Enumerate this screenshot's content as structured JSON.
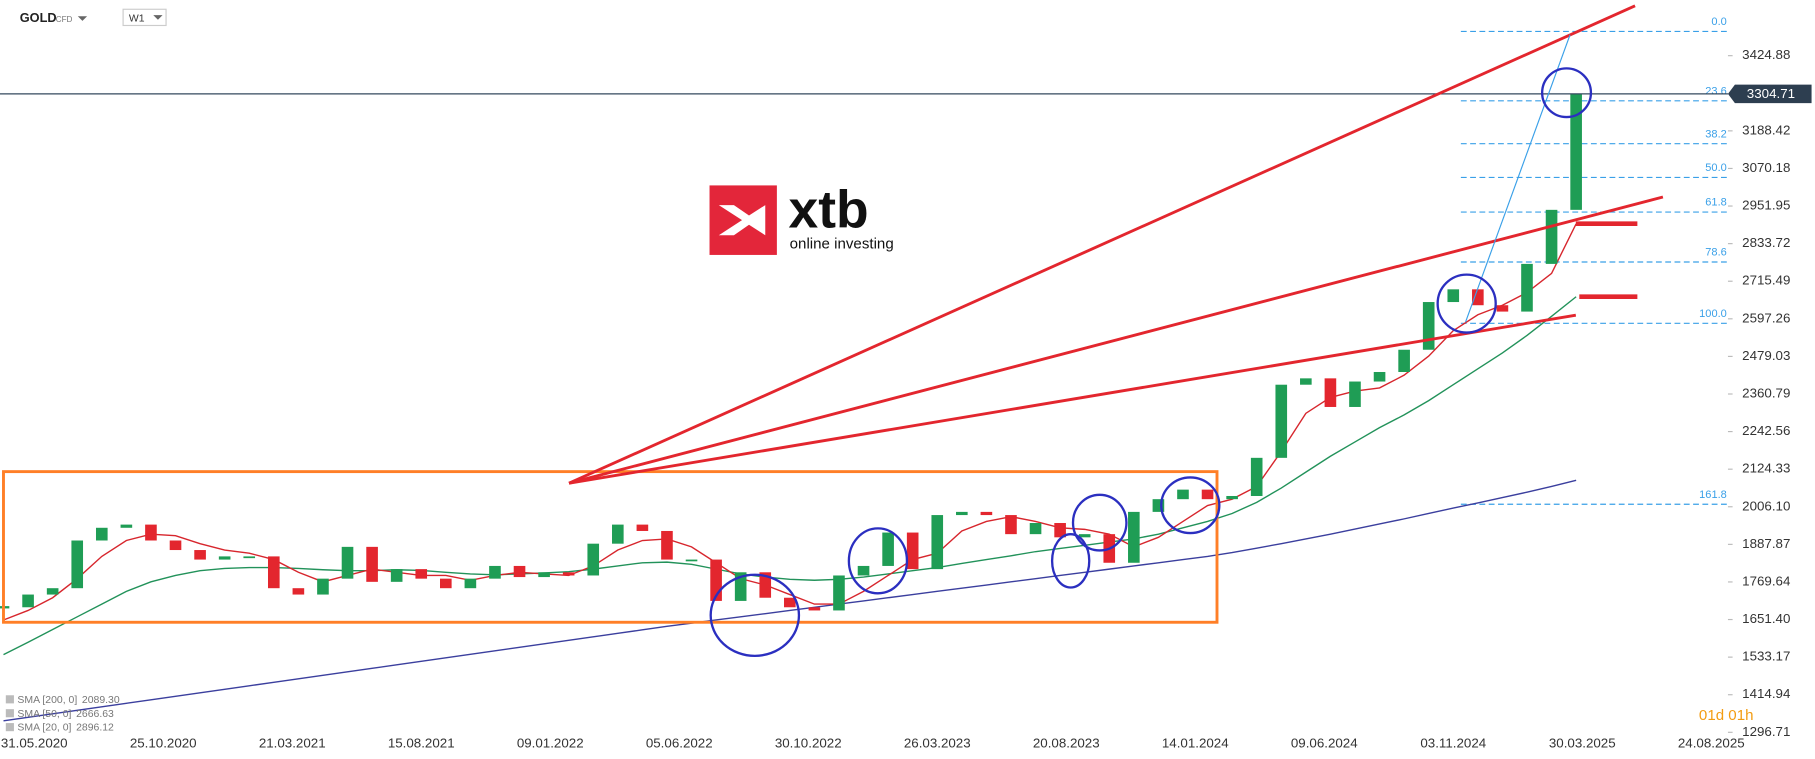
{
  "chart_data": {
    "type": "candlestick",
    "symbol": "GOLD",
    "instrument_type": "CFD",
    "timeframe": "W1",
    "brand": "xtb",
    "brand_tagline": "online investing",
    "countdown": "01d 01h",
    "x": [
      "26.04.2020",
      "24.05.2020",
      "21.06.2020",
      "19.07.2020",
      "16.08.2020",
      "13.09.2020",
      "11.10.2020",
      "08.11.2020",
      "06.12.2020",
      "03.01.2021",
      "31.01.2021",
      "28.02.2021",
      "28.03.2021",
      "25.04.2021",
      "23.05.2021",
      "20.06.2021",
      "18.07.2021",
      "15.08.2021",
      "12.09.2021",
      "10.10.2021",
      "07.11.2021",
      "05.12.2021",
      "02.01.2022",
      "30.01.2022",
      "27.02.2022",
      "27.03.2022",
      "24.04.2022",
      "22.05.2022",
      "19.06.2022",
      "17.07.2022",
      "14.08.2022",
      "11.09.2022",
      "09.10.2022",
      "06.11.2022",
      "04.12.2022",
      "01.01.2023",
      "29.01.2023",
      "26.02.2023",
      "26.03.2023",
      "23.04.2023",
      "21.05.2023",
      "18.06.2023",
      "16.07.2023",
      "13.08.2023",
      "10.09.2023",
      "08.10.2023",
      "05.11.2023",
      "03.12.2023",
      "31.12.2023",
      "28.01.2024",
      "25.02.2024",
      "24.03.2024",
      "21.04.2024",
      "19.05.2024",
      "16.06.2024",
      "14.07.2024",
      "11.08.2024",
      "08.09.2024",
      "06.10.2024",
      "03.11.2024",
      "01.12.2024",
      "29.12.2024",
      "26.01.2025",
      "23.02.2025",
      "23.03.2025"
    ],
    "series": [
      {
        "name": "GOLD",
        "up_color": "#1f9d55",
        "down_color": "#e3262e",
        "values": [
          1690,
          1730,
          1750,
          1900,
          1940,
          1950,
          1900,
          1870,
          1840,
          1850,
          1850,
          1750,
          1730,
          1780,
          1880,
          1770,
          1810,
          1780,
          1750,
          1780,
          1820,
          1785,
          1800,
          1790,
          1890,
          1950,
          1930,
          1840,
          1840,
          1710,
          1800,
          1720,
          1690,
          1680,
          1790,
          1820,
          1925,
          1810,
          1980,
          1990,
          1980,
          1920,
          1955,
          1910,
          1920,
          1830,
          1990,
          2030,
          2060,
          2030,
          2040,
          2160,
          2390,
          2410,
          2320,
          2400,
          2430,
          2500,
          2650,
          2690,
          2640,
          2620,
          2770,
          2940,
          3304.71
        ]
      },
      {
        "name": "SMA [200, 0]",
        "last_label": "2089.30",
        "color": "#3b3f9e",
        "values": [
          1333,
          1344,
          1355,
          1366,
          1377,
          1388,
          1399,
          1410,
          1421,
          1432,
          1443,
          1454,
          1465,
          1476,
          1487,
          1498,
          1509,
          1520,
          1531,
          1542,
          1553,
          1564,
          1575,
          1586,
          1597,
          1608,
          1619,
          1630,
          1640,
          1650,
          1660,
          1670,
          1680,
          1690,
          1700,
          1710,
          1720,
          1730,
          1740,
          1750,
          1760,
          1770,
          1780,
          1790,
          1800,
          1810,
          1820,
          1830,
          1840,
          1850,
          1862,
          1876,
          1890,
          1905,
          1920,
          1936,
          1952,
          1968,
          1985,
          2002,
          2018,
          2035,
          2052,
          2070,
          2089.3
        ]
      },
      {
        "name": "SMA [50, 0]",
        "last_label": "2666.63",
        "color": "#22925a",
        "values": [
          1541,
          1580,
          1620,
          1660,
          1700,
          1740,
          1770,
          1790,
          1805,
          1812,
          1815,
          1815,
          1812,
          1808,
          1805,
          1805,
          1808,
          1806,
          1800,
          1795,
          1792,
          1795,
          1798,
          1802,
          1810,
          1820,
          1830,
          1832,
          1825,
          1810,
          1795,
          1785,
          1778,
          1775,
          1778,
          1785,
          1795,
          1805,
          1815,
          1828,
          1840,
          1852,
          1865,
          1875,
          1885,
          1895,
          1905,
          1920,
          1940,
          1960,
          1985,
          2020,
          2065,
          2115,
          2165,
          2210,
          2255,
          2295,
          2340,
          2390,
          2440,
          2490,
          2545,
          2605,
          2666.63
        ]
      },
      {
        "name": "SMA [20, 0]",
        "last_label": "2896.12",
        "color": "#d7262d",
        "values": [
          1650,
          1680,
          1720,
          1780,
          1850,
          1900,
          1920,
          1915,
          1890,
          1870,
          1860,
          1840,
          1800,
          1770,
          1790,
          1810,
          1800,
          1790,
          1790,
          1775,
          1790,
          1800,
          1795,
          1790,
          1820,
          1870,
          1900,
          1905,
          1880,
          1830,
          1780,
          1760,
          1730,
          1700,
          1700,
          1740,
          1790,
          1840,
          1860,
          1930,
          1960,
          1975,
          1960,
          1940,
          1935,
          1920,
          1880,
          1910,
          1960,
          2010,
          2030,
          2070,
          2180,
          2300,
          2350,
          2370,
          2380,
          2420,
          2480,
          2560,
          2610,
          2640,
          2680,
          2740,
          2896.12
        ]
      }
    ],
    "last_price": 3304.71,
    "xlim": [
      "22.04.2020",
      "12.09.2025"
    ],
    "xticks": [
      "31.05.2020",
      "25.10.2020",
      "21.03.2021",
      "15.08.2021",
      "09.01.2022",
      "05.06.2022",
      "30.10.2022",
      "26.03.2023",
      "20.08.2023",
      "14.01.2024",
      "09.06.2024",
      "03.11.2024",
      "30.03.2025",
      "24.08.2025"
    ],
    "ylim": [
      1231,
      3600
    ],
    "yticks": [
      3424.88,
      3188.42,
      3070.18,
      2951.95,
      2833.72,
      2715.49,
      2597.26,
      2479.03,
      2360.79,
      2242.56,
      2124.33,
      {
        "value": 2006.1,
        "label": "2006.10"
      },
      1887.87,
      1769.64,
      {
        "value": 1651.4,
        "label": "1651.40"
      },
      1533.17,
      1414.94,
      1296.71
    ],
    "fib_levels": [
      {
        "level": "0.0",
        "price": 3501
      },
      {
        "level": "23.6",
        "price": 3283
      },
      {
        "level": "38.2",
        "price": 3148
      },
      {
        "level": "50.0",
        "price": 3042
      },
      {
        "level": "61.8",
        "price": 2933
      },
      {
        "level": "78.6",
        "price": 2776
      },
      {
        "level": "100.0",
        "price": 2583
      },
      {
        "level": "161.8",
        "price": 2014
      }
    ],
    "fib_color": "#3aa0e8"
  }
}
